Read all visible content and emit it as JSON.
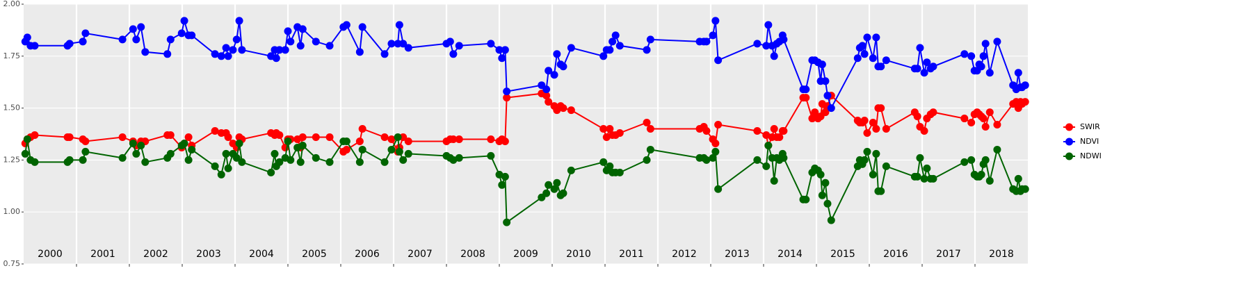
{
  "chart_data": {
    "type": "line",
    "x": [
      2000.03,
      2000.07,
      2000.13,
      2000.21,
      2000.83,
      2000.87,
      2001.12,
      2001.17,
      2001.87,
      2002.07,
      2002.13,
      2002.22,
      2002.3,
      2002.72,
      2002.78,
      2002.99,
      2003.04,
      2003.12,
      2003.18,
      2003.62,
      2003.74,
      2003.83,
      2003.87,
      2003.96,
      2004.03,
      2004.08,
      2004.13,
      2004.68,
      2004.75,
      2004.78,
      2004.84,
      2004.95,
      2005.0,
      2005.05,
      2005.18,
      2005.24,
      2005.28,
      2005.53,
      2005.79,
      2006.05,
      2006.11,
      2006.36,
      2006.41,
      2006.83,
      2006.96,
      2007.08,
      2007.11,
      2007.18,
      2007.28,
      2008.0,
      2008.07,
      2008.13,
      2008.24,
      2008.84,
      2009.0,
      2009.05,
      2009.11,
      2009.14,
      2009.8,
      2009.89,
      2009.93,
      2010.04,
      2010.09,
      2010.16,
      2010.21,
      2010.36,
      2010.97,
      2011.03,
      2011.09,
      2011.14,
      2011.2,
      2011.28,
      2011.79,
      2011.86,
      2012.79,
      2012.87,
      2012.92,
      2013.04,
      2013.09,
      2013.14,
      2013.88,
      2014.05,
      2014.09,
      2014.16,
      2014.2,
      2014.25,
      2014.3,
      2014.36,
      2014.38,
      2014.75,
      2014.8,
      2014.92,
      2014.97,
      2015.03,
      2015.08,
      2015.11,
      2015.17,
      2015.21,
      2015.28,
      2015.78,
      2015.82,
      2015.87,
      2015.91,
      2015.96,
      2016.07,
      2016.13,
      2016.17,
      2016.22,
      2016.32,
      2016.86,
      2016.91,
      2016.96,
      2017.04,
      2017.09,
      2017.16,
      2017.21,
      2017.8,
      2017.93,
      2017.99,
      2018.04,
      2018.08,
      2018.12,
      2018.16,
      2018.2,
      2018.28,
      2018.42,
      2018.72,
      2018.78,
      2018.82,
      2018.86,
      2018.89,
      2018.95
    ],
    "series": [
      {
        "name": "SWIR",
        "color": "#ff0000",
        "values": [
          1.33,
          1.35,
          1.36,
          1.37,
          1.36,
          1.36,
          1.35,
          1.34,
          1.36,
          1.34,
          1.32,
          1.34,
          1.34,
          1.37,
          1.37,
          1.31,
          1.33,
          1.36,
          1.32,
          1.39,
          1.38,
          1.38,
          1.36,
          1.33,
          1.31,
          1.36,
          1.35,
          1.38,
          1.37,
          1.38,
          1.37,
          1.31,
          1.35,
          1.35,
          1.35,
          1.31,
          1.36,
          1.36,
          1.36,
          1.29,
          1.3,
          1.34,
          1.4,
          1.36,
          1.35,
          1.29,
          1.31,
          1.36,
          1.34,
          1.34,
          1.35,
          1.35,
          1.35,
          1.35,
          1.34,
          1.35,
          1.34,
          1.55,
          1.57,
          1.56,
          1.53,
          1.51,
          1.49,
          1.51,
          1.5,
          1.49,
          1.4,
          1.36,
          1.4,
          1.37,
          1.37,
          1.38,
          1.43,
          1.4,
          1.4,
          1.41,
          1.39,
          1.35,
          1.33,
          1.42,
          1.39,
          1.37,
          1.32,
          1.36,
          1.4,
          1.36,
          1.36,
          1.39,
          1.39,
          1.55,
          1.55,
          1.45,
          1.48,
          1.45,
          1.46,
          1.52,
          1.48,
          1.51,
          1.56,
          1.44,
          1.43,
          1.43,
          1.44,
          1.38,
          1.43,
          1.4,
          1.5,
          1.5,
          1.4,
          1.48,
          1.46,
          1.41,
          1.39,
          1.45,
          1.47,
          1.48,
          1.45,
          1.43,
          1.47,
          1.48,
          1.47,
          1.46,
          1.45,
          1.41,
          1.48,
          1.42,
          1.52,
          1.53,
          1.5,
          1.53,
          1.52,
          1.53
        ]
      },
      {
        "name": "NDVI",
        "color": "#0000ff",
        "values": [
          1.82,
          1.84,
          1.8,
          1.8,
          1.8,
          1.81,
          1.82,
          1.86,
          1.83,
          1.88,
          1.83,
          1.89,
          1.77,
          1.76,
          1.83,
          1.86,
          1.92,
          1.85,
          1.85,
          1.76,
          1.75,
          1.79,
          1.75,
          1.78,
          1.83,
          1.92,
          1.78,
          1.75,
          1.78,
          1.74,
          1.78,
          1.78,
          1.87,
          1.82,
          1.89,
          1.8,
          1.88,
          1.82,
          1.8,
          1.89,
          1.9,
          1.77,
          1.89,
          1.76,
          1.81,
          1.81,
          1.9,
          1.81,
          1.79,
          1.81,
          1.82,
          1.76,
          1.8,
          1.81,
          1.78,
          1.74,
          1.78,
          1.58,
          1.61,
          1.59,
          1.68,
          1.66,
          1.76,
          1.71,
          1.7,
          1.79,
          1.75,
          1.78,
          1.78,
          1.82,
          1.85,
          1.8,
          1.78,
          1.83,
          1.82,
          1.82,
          1.82,
          1.85,
          1.92,
          1.73,
          1.81,
          1.8,
          1.9,
          1.8,
          1.75,
          1.81,
          1.82,
          1.85,
          1.83,
          1.59,
          1.59,
          1.73,
          1.73,
          1.72,
          1.63,
          1.71,
          1.63,
          1.56,
          1.5,
          1.74,
          1.79,
          1.8,
          1.76,
          1.84,
          1.74,
          1.84,
          1.7,
          1.7,
          1.73,
          1.69,
          1.69,
          1.79,
          1.67,
          1.72,
          1.69,
          1.7,
          1.76,
          1.75,
          1.68,
          1.68,
          1.71,
          1.7,
          1.75,
          1.81,
          1.67,
          1.82,
          1.61,
          1.59,
          1.67,
          1.6,
          1.6,
          1.61
        ]
      },
      {
        "name": "NDWI",
        "color": "#006400",
        "values": [
          1.28,
          1.35,
          1.25,
          1.24,
          1.24,
          1.25,
          1.25,
          1.29,
          1.26,
          1.33,
          1.28,
          1.32,
          1.24,
          1.26,
          1.28,
          1.32,
          1.33,
          1.25,
          1.3,
          1.22,
          1.18,
          1.28,
          1.21,
          1.28,
          1.26,
          1.33,
          1.24,
          1.19,
          1.28,
          1.22,
          1.24,
          1.26,
          1.34,
          1.25,
          1.31,
          1.24,
          1.32,
          1.26,
          1.24,
          1.34,
          1.34,
          1.24,
          1.3,
          1.24,
          1.3,
          1.36,
          1.29,
          1.25,
          1.28,
          1.27,
          1.26,
          1.25,
          1.26,
          1.27,
          1.18,
          1.13,
          1.17,
          0.95,
          1.07,
          1.09,
          1.13,
          1.11,
          1.14,
          1.08,
          1.09,
          1.2,
          1.24,
          1.2,
          1.22,
          1.19,
          1.19,
          1.19,
          1.25,
          1.3,
          1.26,
          1.26,
          1.25,
          1.26,
          1.29,
          1.11,
          1.25,
          1.22,
          1.32,
          1.26,
          1.15,
          1.26,
          1.25,
          1.28,
          1.26,
          1.06,
          1.06,
          1.19,
          1.21,
          1.2,
          1.18,
          1.08,
          1.14,
          1.04,
          0.96,
          1.22,
          1.25,
          1.23,
          1.25,
          1.29,
          1.18,
          1.28,
          1.1,
          1.1,
          1.22,
          1.17,
          1.17,
          1.26,
          1.16,
          1.21,
          1.16,
          1.16,
          1.24,
          1.25,
          1.18,
          1.17,
          1.17,
          1.18,
          1.23,
          1.25,
          1.15,
          1.3,
          1.11,
          1.1,
          1.16,
          1.1,
          1.11,
          1.11
        ]
      }
    ],
    "xlim": [
      2000,
      2019
    ],
    "xticks": [
      {
        "value": 2000.5,
        "label": "2000"
      },
      {
        "value": 2001.5,
        "label": "2001"
      },
      {
        "value": 2002.5,
        "label": "2002"
      },
      {
        "value": 2003.5,
        "label": "2003"
      },
      {
        "value": 2004.5,
        "label": "2004"
      },
      {
        "value": 2005.5,
        "label": "2005"
      },
      {
        "value": 2006.5,
        "label": "2006"
      },
      {
        "value": 2007.5,
        "label": "2007"
      },
      {
        "value": 2008.5,
        "label": "2008"
      },
      {
        "value": 2009.5,
        "label": "2009"
      },
      {
        "value": 2010.5,
        "label": "2010"
      },
      {
        "value": 2011.5,
        "label": "2011"
      },
      {
        "value": 2012.5,
        "label": "2012"
      },
      {
        "value": 2013.5,
        "label": "2013"
      },
      {
        "value": 2014.5,
        "label": "2014"
      },
      {
        "value": 2015.5,
        "label": "2015"
      },
      {
        "value": 2016.5,
        "label": "2016"
      },
      {
        "value": 2017.5,
        "label": "2017"
      },
      {
        "value": 2018.5,
        "label": "2018"
      }
    ],
    "year_boundaries": [
      2001,
      2002,
      2003,
      2004,
      2005,
      2006,
      2007,
      2008,
      2009,
      2010,
      2011,
      2012,
      2013,
      2014,
      2015,
      2016,
      2017,
      2018
    ],
    "ylim": [
      0.75,
      2.0
    ],
    "yticks": [
      {
        "value": 0.75,
        "label": "0.75"
      },
      {
        "value": 1.0,
        "label": "1.00"
      },
      {
        "value": 1.25,
        "label": "1.25"
      },
      {
        "value": 1.5,
        "label": "1.50"
      },
      {
        "value": 1.75,
        "label": "1.75"
      },
      {
        "value": 2.0,
        "label": "2.00"
      }
    ],
    "grid": true,
    "legend": "right"
  }
}
